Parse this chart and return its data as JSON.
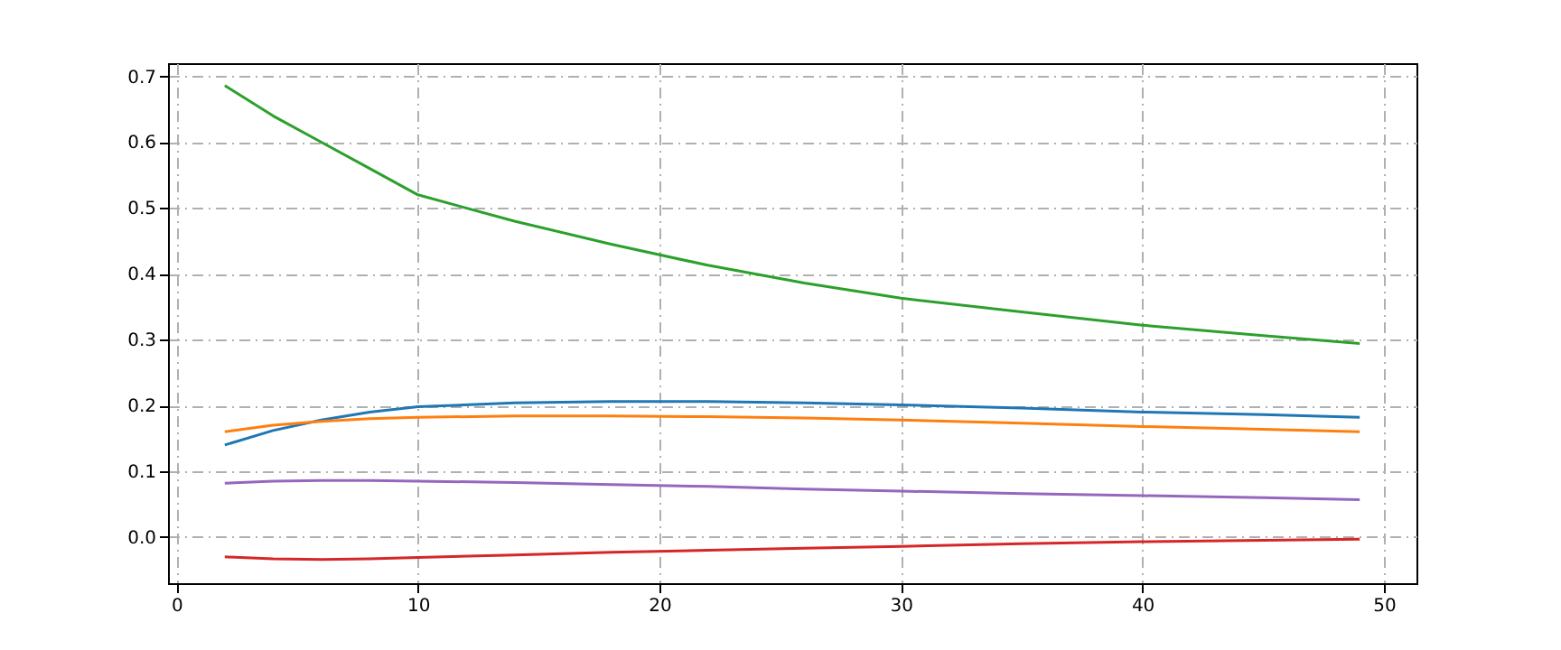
{
  "chart_data": {
    "type": "line",
    "x": [
      2,
      4,
      6,
      8,
      10,
      14,
      18,
      22,
      26,
      30,
      35,
      40,
      45,
      49
    ],
    "series": [
      {
        "color": "#1f77b4",
        "values": [
          0.14,
          0.162,
          0.178,
          0.19,
          0.198,
          0.204,
          0.206,
          0.206,
          0.204,
          0.201,
          0.196,
          0.19,
          0.186,
          0.182
        ]
      },
      {
        "color": "#ff7f0e",
        "values": [
          0.16,
          0.17,
          0.176,
          0.18,
          0.182,
          0.184,
          0.184,
          0.183,
          0.181,
          0.178,
          0.173,
          0.168,
          0.164,
          0.16
        ]
      },
      {
        "color": "#2ca02c",
        "values": [
          0.686,
          0.64,
          0.6,
          0.56,
          0.52,
          0.48,
          0.445,
          0.413,
          0.386,
          0.363,
          0.342,
          0.322,
          0.306,
          0.294
        ]
      },
      {
        "color": "#d62728",
        "values": [
          -0.03,
          -0.033,
          -0.034,
          -0.033,
          -0.031,
          -0.027,
          -0.023,
          -0.02,
          -0.017,
          -0.014,
          -0.01,
          -0.007,
          -0.005,
          -0.003
        ]
      },
      {
        "color": "#9467bd",
        "values": [
          0.082,
          0.085,
          0.086,
          0.086,
          0.085,
          0.083,
          0.08,
          0.077,
          0.073,
          0.07,
          0.066,
          0.063,
          0.06,
          0.057
        ]
      }
    ],
    "xlim": [
      -0.35,
      51.35
    ],
    "ylim": [
      -0.07,
      0.72
    ],
    "xticks": [
      0,
      10,
      20,
      30,
      40,
      50
    ],
    "yticks": [
      {
        "value": 0,
        "label": "0.0"
      },
      0.1,
      0.2,
      0.3,
      0.4,
      0.5,
      0.6,
      0.7
    ],
    "grid": true,
    "legend": false
  }
}
